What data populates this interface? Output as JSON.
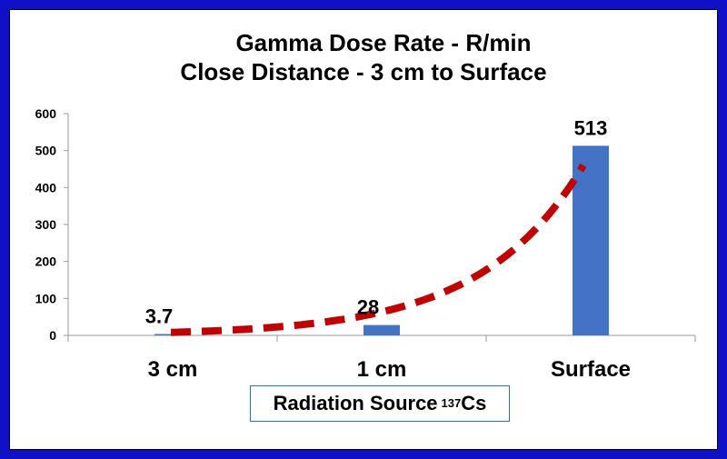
{
  "chart_data": {
    "type": "bar",
    "title": "Gamma Dose Rate - R/min",
    "subtitle": "Close Distance - 3 cm to Surface",
    "categories": [
      "3 cm",
      "1 cm",
      "Surface"
    ],
    "values": [
      3.7,
      28,
      513
    ],
    "data_labels": [
      "3.7",
      "28",
      "513"
    ],
    "xlabel_main": "Radiation Source",
    "xlabel_sup": "137",
    "xlabel_suffix": "Cs",
    "ylabel": "",
    "ylim": [
      0,
      600
    ],
    "yticks": [
      0,
      100,
      200,
      300,
      400,
      500,
      600
    ],
    "grid": false,
    "legend": "none",
    "trendline": {
      "type": "exponential",
      "style": "dashed",
      "color": "#c00000"
    },
    "bar_color": "#4472c4"
  },
  "frame": {
    "border_color": "#1010c8"
  }
}
